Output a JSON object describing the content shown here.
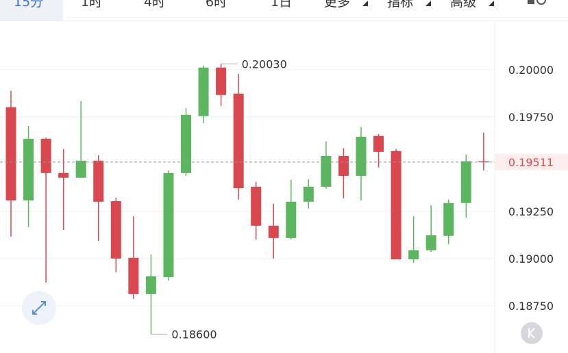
{
  "tabs": [
    "15分",
    "1时",
    "4时",
    "6时",
    "1日",
    "更多",
    "指标",
    "高级"
  ],
  "chart_data": {
    "type": "candlestick",
    "series": [
      {
        "name": "price",
        "up_color": "#5cb660",
        "down_color": "#d9474f",
        "open": [
          0.19801,
          0.19308,
          0.19634,
          0.19453,
          0.19428,
          0.19518,
          0.19304,
          0.19004,
          0.18812,
          0.18902,
          0.19453,
          0.19754,
          0.20011,
          0.19873,
          0.1938,
          0.19174,
          0.19109,
          0.19301,
          0.1938,
          0.19543,
          0.19438,
          0.19649,
          0.19569,
          0.18996,
          0.19044,
          0.1912,
          0.19294,
          0.19515
        ],
        "high": [
          0.19888,
          0.19703,
          0.19641,
          0.1958,
          0.19833,
          0.19547,
          0.19322,
          0.19225,
          0.19022,
          0.19467,
          0.19797,
          0.20022,
          0.2003,
          0.19978,
          0.19406,
          0.1929,
          0.19417,
          0.1942,
          0.1962,
          0.19583,
          0.19696,
          0.19659,
          0.1958,
          0.19225,
          0.19283,
          0.19312,
          0.19551,
          0.19667
        ],
        "low": [
          0.19116,
          0.19167,
          0.18873,
          0.19152,
          0.19428,
          0.19094,
          0.18928,
          0.18786,
          0.186,
          0.18884,
          0.19438,
          0.19717,
          0.19808,
          0.19312,
          0.19101,
          0.19,
          0.19101,
          0.19265,
          0.1937,
          0.19319,
          0.19308,
          0.19482,
          0.18996,
          0.18978,
          0.19036,
          0.19076,
          0.19217,
          0.19467
        ],
        "close": [
          0.19308,
          0.19634,
          0.19453,
          0.19428,
          0.19518,
          0.19301,
          0.19,
          0.18812,
          0.18906,
          0.19453,
          0.19761,
          0.20011,
          0.19866,
          0.19373,
          0.19174,
          0.19109,
          0.19301,
          0.1938,
          0.19543,
          0.19438,
          0.19645,
          0.19565,
          0.18996,
          0.19044,
          0.19123,
          0.19294,
          0.19515,
          0.19511
        ]
      }
    ],
    "ylim": [
      0.1854,
      0.2026
    ],
    "yticks": [
      {
        "value": 0.2,
        "label": "0.20000"
      },
      {
        "value": 0.1975,
        "label": "0.19750"
      },
      {
        "value": 0.1925,
        "label": "0.19250"
      },
      {
        "value": 0.19,
        "label": "0.19000"
      },
      {
        "value": 0.1875,
        "label": "0.18750"
      }
    ],
    "last_price": 0.19511,
    "annotations": [
      {
        "value": 0.2003,
        "label": "0.20030",
        "index": 12
      },
      {
        "value": 0.186,
        "label": "0.18600",
        "index": 8
      }
    ],
    "grid": true
  }
}
